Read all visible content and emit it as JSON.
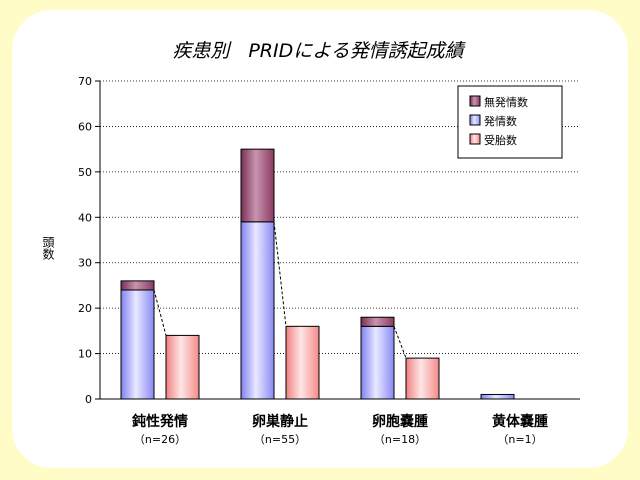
{
  "chart_data": {
    "type": "bar",
    "title": "疾患別　PRIDによる発情誘起成績",
    "ylabel": "頭数",
    "xlabel": "",
    "ylim": [
      0,
      70
    ],
    "yticks": [
      0,
      10,
      20,
      30,
      40,
      50,
      60,
      70
    ],
    "grid": true,
    "legend_position": "top-right",
    "categories": [
      "鈍性発情",
      "卵巣静止",
      "卵胞嚢腫",
      "黄体嚢腫"
    ],
    "category_notes": [
      "（n=26）",
      "（n=55）",
      "（n=18）",
      "（n=1）"
    ],
    "series": [
      {
        "name": "無発情数",
        "values": [
          2,
          16,
          2,
          0
        ],
        "stack": "a",
        "color": "#993366"
      },
      {
        "name": "発情数",
        "values": [
          24,
          39,
          16,
          1
        ],
        "stack": "a",
        "color": "#9999ff"
      },
      {
        "name": "受胎数",
        "values": [
          14,
          16,
          9,
          0
        ],
        "stack": "b",
        "color": "#ff9999"
      }
    ],
    "legend_order": [
      "無発情数",
      "発情数",
      "受胎数"
    ]
  }
}
